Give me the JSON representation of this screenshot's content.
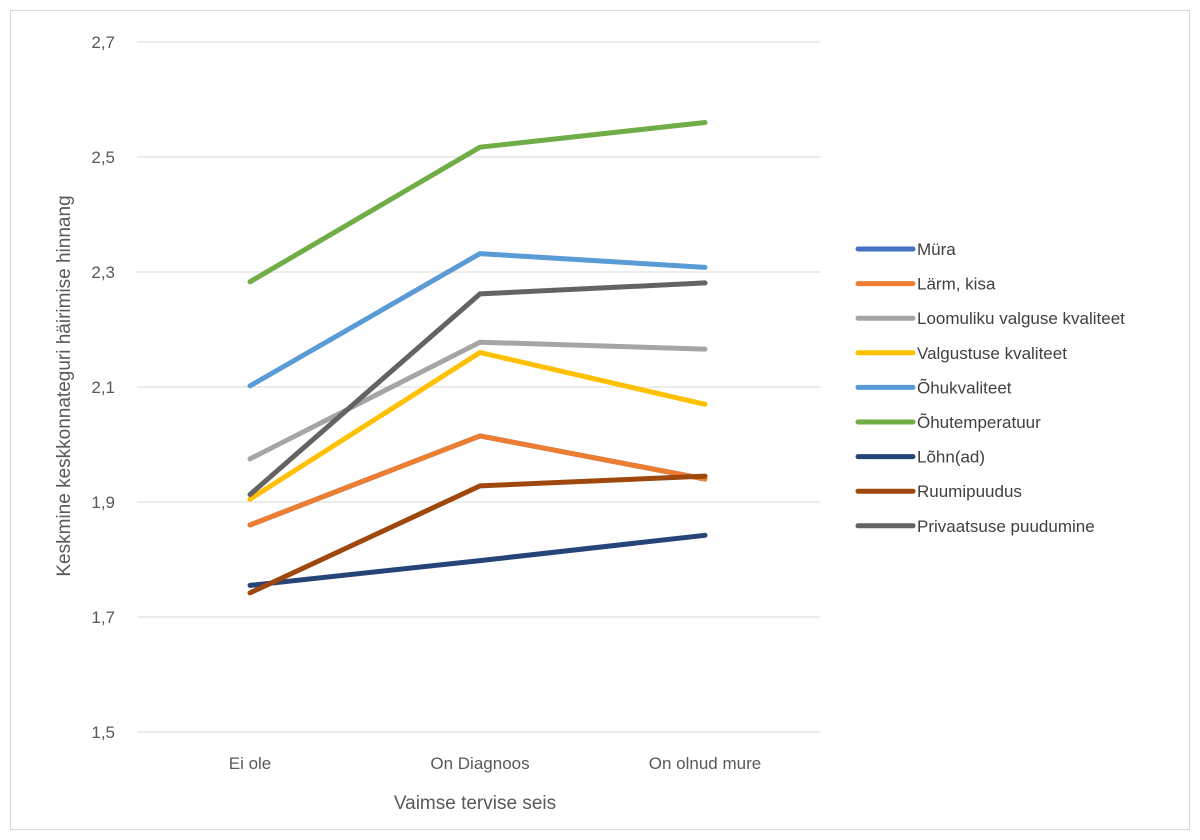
{
  "chart_data": {
    "type": "line",
    "title": "",
    "xlabel": "Vaimse tervise seis",
    "ylabel": "Keskmine keskkonnateguri häirimise hinnang",
    "categories": [
      "Ei ole",
      "On Diagnoos",
      "On olnud mure"
    ],
    "ylim": [
      1.5,
      2.7
    ],
    "yticks": [
      "1,5",
      "1,7",
      "1,9",
      "2,1",
      "2,3",
      "2,5",
      "2,7"
    ],
    "ytick_values": [
      1.5,
      1.7,
      1.9,
      2.1,
      2.3,
      2.5,
      2.7
    ],
    "grid": true,
    "legend_position": "right",
    "series": [
      {
        "name": "Müra",
        "color": "#4472c4",
        "values": [
          1.86,
          2.015,
          1.94
        ]
      },
      {
        "name": "Lärm, kisa",
        "color": "#ed7d31",
        "values": [
          1.86,
          2.015,
          1.94
        ]
      },
      {
        "name": "Loomuliku valguse kvaliteet",
        "color": "#a5a5a5",
        "values": [
          1.975,
          2.178,
          2.166
        ]
      },
      {
        "name": "Valgustuse kvaliteet",
        "color": "#ffc000",
        "values": [
          1.905,
          2.16,
          2.07
        ]
      },
      {
        "name": "Õhukvaliteet",
        "color": "#5b9bd5",
        "values": [
          2.102,
          2.332,
          2.308
        ]
      },
      {
        "name": "Õhutemperatuur",
        "color": "#70ad47",
        "values": [
          2.283,
          2.517,
          2.56
        ]
      },
      {
        "name": "Lõhn(ad)",
        "color": "#264478",
        "values": [
          1.755,
          1.798,
          1.842
        ]
      },
      {
        "name": "Ruumipuudus",
        "color": "#9e480e",
        "values": [
          1.742,
          1.928,
          1.945
        ]
      },
      {
        "name": "Privaatsuse puudumine",
        "color": "#636363",
        "values": [
          1.913,
          2.262,
          2.281
        ]
      }
    ]
  }
}
